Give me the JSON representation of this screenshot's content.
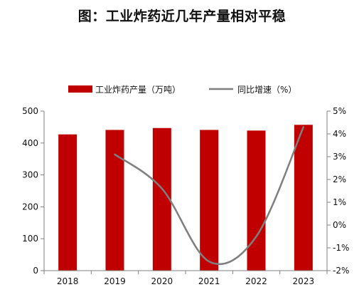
{
  "title": "图：工业炸药近几年产量相对平稳",
  "chart_data": {
    "type": "bar+line",
    "categories": [
      "2018",
      "2019",
      "2020",
      "2021",
      "2022",
      "2023"
    ],
    "series": [
      {
        "name": "工业炸药产量（万吨）",
        "type": "bar",
        "axis": "left",
        "values": [
          427,
          441,
          447,
          441,
          439,
          457
        ],
        "color": "#C00000"
      },
      {
        "name": "同比增速（%）",
        "type": "line",
        "axis": "right",
        "smooth": true,
        "values": [
          null,
          3.1,
          1.6,
          -1.6,
          -0.5,
          4.3
        ],
        "color": "#7F7F7F"
      }
    ],
    "y_left": {
      "range": [
        0,
        500
      ],
      "ticks": [
        "0",
        "100",
        "200",
        "300",
        "400",
        "500"
      ]
    },
    "y_right": {
      "range": [
        -2,
        5
      ],
      "ticks": [
        "-2%",
        "-1%",
        "0%",
        "1%",
        "2%",
        "3%",
        "4%",
        "5%"
      ]
    },
    "grid": false,
    "legend": "top-center"
  }
}
